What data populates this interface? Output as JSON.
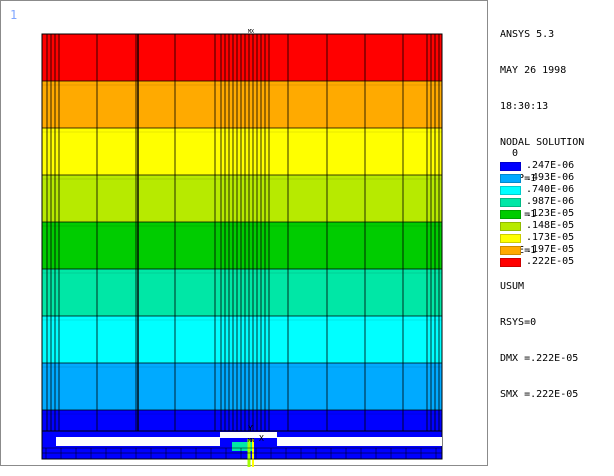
{
  "window": {
    "number": "1"
  },
  "plot": {
    "top_marker": "MX",
    "bottom_marker": "MN",
    "axis_y": "Y",
    "axis_x": "X",
    "bands": [
      {
        "color": "#ff0000"
      },
      {
        "color": "#ffaa00"
      },
      {
        "color": "#ffff00"
      },
      {
        "color": "#b7ea00"
      },
      {
        "color": "#00cc00"
      },
      {
        "color": "#00e7a6"
      },
      {
        "color": "#00ffff"
      },
      {
        "color": "#00aaff"
      },
      {
        "color": "#0000ff"
      }
    ]
  },
  "annotation": {
    "lines": [
      "ANSYS 5.3",
      "MAY 26 1998",
      "18:30:13",
      "NODAL SOLUTION",
      "STEP=1",
      "SUB =1",
      "TIME=1",
      "USUM",
      "RSYS=0",
      "DMX =.222E-05",
      "SMX =.222E-05"
    ]
  },
  "legend": {
    "zero": "0",
    "entries": [
      {
        "label": ".247E-06",
        "color": "#0000ff"
      },
      {
        "label": ".493E-06",
        "color": "#00aaff"
      },
      {
        "label": ".740E-06",
        "color": "#00ffff"
      },
      {
        "label": ".987E-06",
        "color": "#00e7a6"
      },
      {
        "label": ".123E-05",
        "color": "#00cc00"
      },
      {
        "label": ".148E-05",
        "color": "#b7ea00"
      },
      {
        "label": ".173E-05",
        "color": "#ffff00"
      },
      {
        "label": ".197E-05",
        "color": "#ffaa00"
      },
      {
        "label": ".222E-05",
        "color": "#ff0000"
      }
    ]
  }
}
